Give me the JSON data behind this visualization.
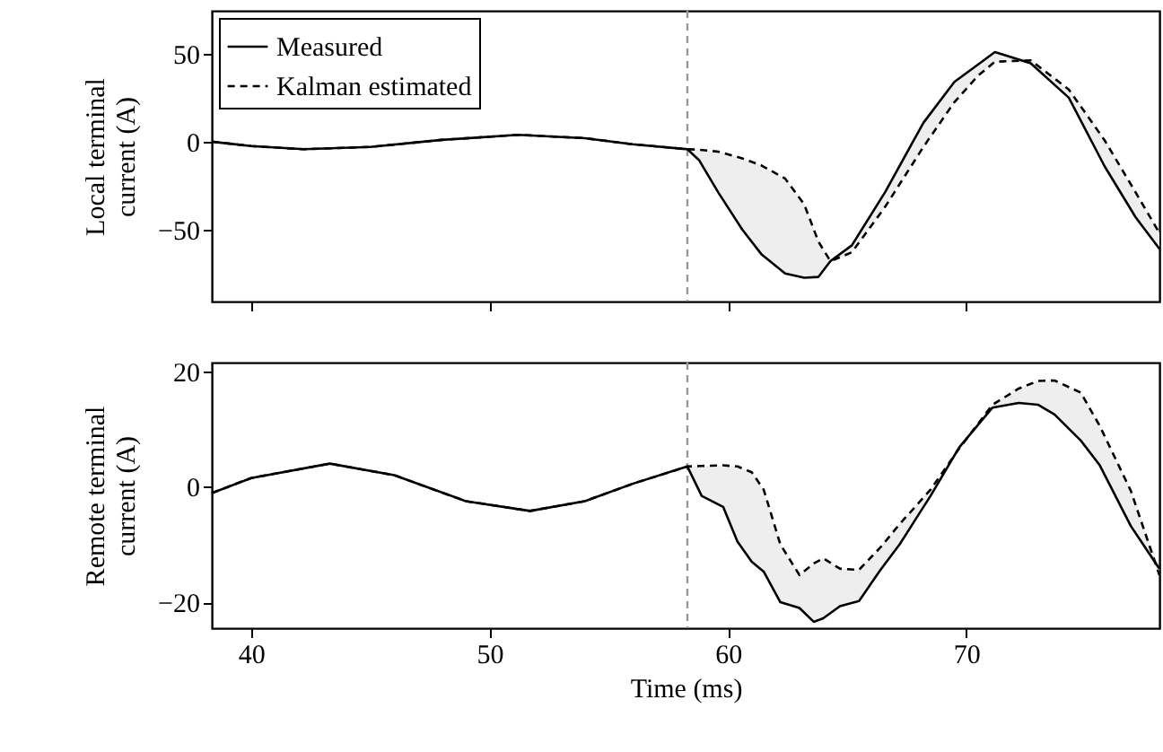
{
  "chart_data": [
    {
      "type": "line",
      "ylabel": "Local terminal current (A)",
      "xlim": [
        38.35,
        78.1
      ],
      "xticks": [
        40,
        50,
        60,
        70
      ],
      "ylim": [
        -91,
        74.5
      ],
      "yticks": [
        -50,
        0,
        50
      ],
      "grid": false,
      "legend": "top left",
      "tick_labels": "y",
      "x": [
        38.35,
        40,
        42.2,
        45,
        48,
        51.2,
        54,
        56,
        58.3,
        58.8,
        59.6,
        60.6,
        61.4,
        62.4,
        63.2,
        63.8,
        64.3,
        65.2,
        66.6,
        68.2,
        69.5,
        70.5,
        71.2,
        72.7,
        74.3,
        75.8,
        77.1,
        78.1
      ],
      "series": [
        {
          "name": "Measured",
          "color": "#000000",
          "line_style": "solid",
          "values": [
            0,
            -2.5,
            -4.3,
            -3,
            1,
            3.9,
            2,
            -1.5,
            -4.3,
            -10.7,
            -29,
            -50,
            -64,
            -75,
            -77.5,
            -77,
            -68,
            -59,
            -28.6,
            10.7,
            34,
            44,
            51,
            44.6,
            25,
            -14,
            -43,
            -61
          ]
        },
        {
          "name": "Kalman estimated",
          "color": "#000000",
          "line_style": "dashed",
          "values": [
            0,
            -2.5,
            -4.3,
            -3,
            1,
            3.9,
            2,
            -1.5,
            -4.3,
            -4.6,
            -5.7,
            -9.5,
            -13.5,
            -21,
            -35.7,
            -57,
            -68,
            -63,
            -37,
            -3,
            22.5,
            37.6,
            45.5,
            46.3,
            29.7,
            0.8,
            -28.8,
            -52
          ],
          "lower": [
            null,
            null,
            null,
            null,
            null,
            null,
            null,
            null,
            -4.3,
            -10.7,
            -29,
            -50,
            -64,
            -75,
            -77.5,
            -77,
            -68,
            -63,
            -37,
            -3,
            22.5,
            37.6,
            45.5,
            44.6,
            25,
            -14,
            -43,
            -61
          ],
          "upper": [
            null,
            null,
            null,
            null,
            null,
            null,
            null,
            null,
            -4.3,
            -4.6,
            -5.7,
            -9.5,
            -13.5,
            -21,
            -35.7,
            -57,
            -68,
            -59,
            -28.6,
            10.7,
            34,
            44,
            51,
            46.3,
            29.7,
            0.8,
            -28.8,
            -52
          ]
        }
      ],
      "ref_lines": [
        {
          "axis": "x",
          "value": 58.3,
          "color": "#999999",
          "line_style": "dashed"
        }
      ]
    },
    {
      "type": "line",
      "ylabel": "Remote terminal current (A)",
      "xlabel": "Time (ms)",
      "xlim": [
        38.35,
        78.1
      ],
      "xticks": [
        40,
        50,
        60,
        70
      ],
      "ylim": [
        -24.5,
        21.5
      ],
      "yticks": [
        -20,
        0,
        20
      ],
      "grid": false,
      "legend": "top left",
      "x": [
        38.35,
        40,
        43.3,
        46,
        49,
        51.7,
        54,
        56,
        58.3,
        58.9,
        59.8,
        60.4,
        61.0,
        61.5,
        62.2,
        63.0,
        63.6,
        64.0,
        64.7,
        65.5,
        66.4,
        67.2,
        68.5,
        69.7,
        71.1,
        72.2,
        73.0,
        73.7,
        74.8,
        75.6,
        76.9,
        78.1
      ],
      "series": [
        {
          "name": "Measured",
          "color": "#000000",
          "line_style": "solid",
          "values": [
            -1.1,
            1.5,
            4.0,
            2,
            -2.5,
            -4.2,
            -2.5,
            0.5,
            3.5,
            -1.6,
            -3.5,
            -9.5,
            -13,
            -14.7,
            -20,
            -21,
            -23.4,
            -22.8,
            -20.7,
            -19.8,
            -14.4,
            -10,
            -1.6,
            6.8,
            13.7,
            14.5,
            14.2,
            12.5,
            8,
            3.7,
            -6.8,
            -14.2
          ]
        },
        {
          "name": "Kalman estimated",
          "color": "#000000",
          "line_style": "dashed",
          "values": [
            -1.1,
            1.5,
            4.0,
            2,
            -2.5,
            -4.2,
            -2.5,
            0.5,
            3.5,
            3.6,
            3.7,
            3.5,
            2.5,
            -0.5,
            -10,
            -15.3,
            -13.3,
            -12.4,
            -14.2,
            -14.4,
            -10.5,
            -6.5,
            -0.5,
            6.6,
            14.2,
            17,
            18.3,
            18.4,
            16.3,
            10.5,
            -0.7,
            -15.3
          ],
          "lower": [
            null,
            null,
            null,
            null,
            null,
            null,
            null,
            null,
            3.5,
            -1.6,
            -3.5,
            -9.5,
            -13,
            -14.7,
            -20,
            -21,
            -23.4,
            -22.8,
            -20.7,
            -19.8,
            -14.4,
            -10,
            -1.6,
            6.6,
            13.7,
            14.5,
            14.2,
            12.5,
            8,
            3.7,
            -6.8,
            -15.3
          ],
          "upper": [
            null,
            null,
            null,
            null,
            null,
            null,
            null,
            null,
            3.5,
            3.6,
            3.7,
            3.5,
            2.5,
            -0.5,
            -10,
            -15.3,
            -13.3,
            -12.4,
            -14.2,
            -14.4,
            -10.5,
            -6.5,
            -0.5,
            6.8,
            14.2,
            17,
            18.3,
            18.4,
            16.3,
            10.5,
            -0.7,
            -14.2
          ]
        }
      ],
      "ref_lines": [
        {
          "axis": "x",
          "value": 58.3,
          "color": "#999999",
          "line_style": "dashed"
        }
      ]
    }
  ]
}
